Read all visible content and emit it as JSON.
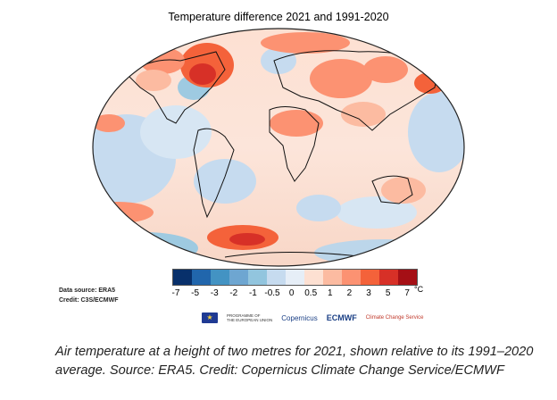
{
  "title": "Temperature difference 2021 and 1991-2020",
  "source": {
    "line1": "Data source: ERA5",
    "line2": "Credit: C3S/ECMWF"
  },
  "colorbar": {
    "ticks": [
      "-7",
      "-5",
      "-3",
      "-2",
      "-1",
      "-0.5",
      "0",
      "0.5",
      "1",
      "2",
      "3",
      "5",
      "7"
    ],
    "unit": "°C",
    "colors": [
      "#08306b",
      "#2166ac",
      "#4393c3",
      "#6ea6d1",
      "#92c5de",
      "#c6dbef",
      "#e6eef7",
      "#fde0d2",
      "#fcbba1",
      "#fc9272",
      "#f4623a",
      "#d73027",
      "#a50f15"
    ]
  },
  "logos": {
    "eu_line1": "PROGRAMME OF",
    "eu_line2": "THE EUROPEAN UNION",
    "copernicus": "Copernicus",
    "ecmwf": "ECMWF",
    "climate": "Climate Change Service"
  },
  "caption": "Air temperature at a height of two metres for 2021, shown relative to its 1991–2020 average. Source: ERA5. Credit: Copernicus Climate Change Service/ECMWF"
}
